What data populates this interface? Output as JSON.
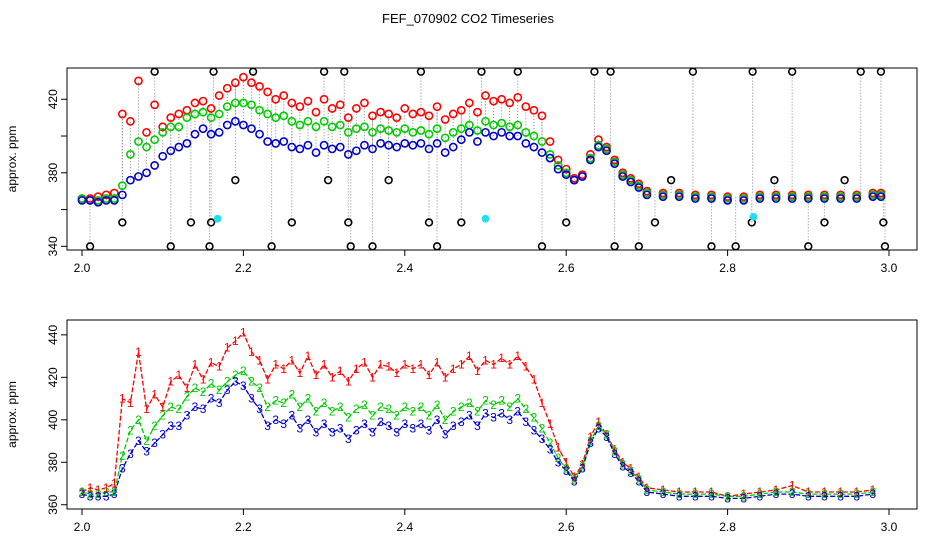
{
  "title": "FEF_070902  CO2 Timeseries",
  "colors": {
    "ch1": "#ff0000",
    "ch2": "#00cc00",
    "ch3": "#0000cc",
    "outlier": "#000000",
    "flag": "#22ddee",
    "link": "#888888",
    "frame": "#000000"
  },
  "chart_data": [
    {
      "type": "scatter",
      "panel": "top",
      "ylabel": "approx. ppm",
      "xlabel": "",
      "xlim": [
        2.0,
        3.0
      ],
      "ylim": [
        338,
        437
      ],
      "xticks": [
        2.0,
        2.2,
        2.4,
        2.6,
        2.8,
        3.0
      ],
      "xtick_labels": [
        "2.0",
        "2.2",
        "2.4",
        "2.6",
        "2.8",
        "3.0"
      ],
      "yticks": [
        340,
        380,
        420
      ],
      "ytick_labels": [
        "340",
        "380",
        "420"
      ],
      "yticks_unlabeled": [
        360,
        400
      ],
      "x": [
        2.0,
        2.01,
        2.02,
        2.03,
        2.04,
        2.05,
        2.06,
        2.07,
        2.08,
        2.09,
        2.1,
        2.11,
        2.12,
        2.13,
        2.14,
        2.15,
        2.16,
        2.17,
        2.18,
        2.19,
        2.2,
        2.21,
        2.22,
        2.23,
        2.24,
        2.25,
        2.26,
        2.27,
        2.28,
        2.29,
        2.3,
        2.31,
        2.32,
        2.33,
        2.34,
        2.35,
        2.36,
        2.37,
        2.38,
        2.39,
        2.4,
        2.41,
        2.42,
        2.43,
        2.44,
        2.45,
        2.46,
        2.47,
        2.48,
        2.49,
        2.5,
        2.51,
        2.52,
        2.53,
        2.54,
        2.55,
        2.56,
        2.57,
        2.58,
        2.59,
        2.6,
        2.61,
        2.62,
        2.63,
        2.64,
        2.65,
        2.66,
        2.67,
        2.68,
        2.69,
        2.7,
        2.72,
        2.74,
        2.76,
        2.78,
        2.8,
        2.82,
        2.84,
        2.86,
        2.88,
        2.9,
        2.92,
        2.94,
        2.96,
        2.98,
        2.99
      ],
      "series": [
        {
          "name": "1",
          "color": "#ff0000",
          "values": [
            366,
            366,
            367,
            368,
            369,
            412,
            408,
            430,
            402,
            417,
            405,
            410,
            412,
            414,
            418,
            419,
            415,
            422,
            426,
            429,
            432,
            429,
            427,
            424,
            420,
            422,
            418,
            416,
            419,
            413,
            420,
            415,
            417,
            410,
            415,
            418,
            411,
            413,
            412,
            410,
            415,
            412,
            413,
            411,
            416,
            409,
            412,
            414,
            418,
            413,
            422,
            419,
            420,
            418,
            421,
            416,
            414,
            411,
            397,
            387,
            382,
            377,
            379,
            390,
            398,
            394,
            387,
            380,
            377,
            374,
            370,
            369,
            369,
            368,
            368,
            367,
            367,
            368,
            368,
            368,
            368,
            368,
            368,
            368,
            369,
            369
          ]
        },
        {
          "name": "2",
          "color": "#00cc00",
          "values": [
            366,
            365,
            365,
            366,
            366,
            373,
            390,
            397,
            394,
            398,
            402,
            405,
            405,
            410,
            412,
            413,
            410,
            412,
            416,
            418,
            418,
            417,
            414,
            412,
            410,
            411,
            408,
            406,
            408,
            405,
            408,
            405,
            406,
            402,
            404,
            405,
            402,
            404,
            403,
            402,
            404,
            402,
            403,
            401,
            404,
            399,
            402,
            404,
            406,
            403,
            408,
            406,
            407,
            405,
            406,
            402,
            400,
            397,
            390,
            384,
            380,
            376,
            378,
            388,
            395,
            393,
            386,
            379,
            376,
            373,
            369,
            368,
            368,
            367,
            367,
            366,
            366,
            367,
            367,
            367,
            367,
            367,
            367,
            367,
            368,
            368
          ]
        },
        {
          "name": "3",
          "color": "#0000cc",
          "values": [
            365,
            365,
            364,
            365,
            365,
            368,
            376,
            378,
            380,
            384,
            389,
            392,
            394,
            396,
            401,
            404,
            401,
            402,
            406,
            408,
            406,
            404,
            401,
            397,
            396,
            397,
            394,
            393,
            395,
            391,
            395,
            393,
            394,
            390,
            392,
            395,
            393,
            396,
            395,
            394,
            396,
            395,
            396,
            393,
            396,
            391,
            394,
            398,
            402,
            397,
            402,
            400,
            402,
            400,
            400,
            396,
            394,
            391,
            388,
            382,
            379,
            376,
            378,
            387,
            394,
            392,
            385,
            378,
            375,
            372,
            368,
            367,
            367,
            366,
            366,
            365,
            365,
            366,
            366,
            366,
            366,
            366,
            366,
            366,
            367,
            367
          ]
        }
      ],
      "outliers": [
        {
          "x": 2.01,
          "y": 340
        },
        {
          "x": 2.05,
          "y": 353
        },
        {
          "x": 2.09,
          "y": 435
        },
        {
          "x": 2.11,
          "y": 340
        },
        {
          "x": 2.135,
          "y": 353
        },
        {
          "x": 2.158,
          "y": 340
        },
        {
          "x": 2.16,
          "y": 353
        },
        {
          "x": 2.163,
          "y": 435
        },
        {
          "x": 2.19,
          "y": 376
        },
        {
          "x": 2.212,
          "y": 435
        },
        {
          "x": 2.235,
          "y": 340
        },
        {
          "x": 2.26,
          "y": 353
        },
        {
          "x": 2.3,
          "y": 435
        },
        {
          "x": 2.305,
          "y": 376
        },
        {
          "x": 2.325,
          "y": 435
        },
        {
          "x": 2.33,
          "y": 353
        },
        {
          "x": 2.333,
          "y": 340
        },
        {
          "x": 2.36,
          "y": 340
        },
        {
          "x": 2.38,
          "y": 376
        },
        {
          "x": 2.42,
          "y": 435
        },
        {
          "x": 2.43,
          "y": 353
        },
        {
          "x": 2.44,
          "y": 340
        },
        {
          "x": 2.47,
          "y": 353
        },
        {
          "x": 2.495,
          "y": 435
        },
        {
          "x": 2.54,
          "y": 435
        },
        {
          "x": 2.57,
          "y": 340
        },
        {
          "x": 2.6,
          "y": 353
        },
        {
          "x": 2.635,
          "y": 435
        },
        {
          "x": 2.655,
          "y": 435
        },
        {
          "x": 2.66,
          "y": 340
        },
        {
          "x": 2.69,
          "y": 340
        },
        {
          "x": 2.71,
          "y": 353
        },
        {
          "x": 2.73,
          "y": 376
        },
        {
          "x": 2.757,
          "y": 435
        },
        {
          "x": 2.78,
          "y": 340
        },
        {
          "x": 2.81,
          "y": 340
        },
        {
          "x": 2.83,
          "y": 353
        },
        {
          "x": 2.831,
          "y": 435
        },
        {
          "x": 2.858,
          "y": 376
        },
        {
          "x": 2.88,
          "y": 435
        },
        {
          "x": 2.9,
          "y": 340
        },
        {
          "x": 2.92,
          "y": 353
        },
        {
          "x": 2.945,
          "y": 376
        },
        {
          "x": 2.965,
          "y": 435
        },
        {
          "x": 2.99,
          "y": 435
        },
        {
          "x": 2.993,
          "y": 353
        },
        {
          "x": 2.995,
          "y": 340
        }
      ],
      "flagged": [
        {
          "x": 2.168,
          "y": 355
        },
        {
          "x": 2.5,
          "y": 355
        },
        {
          "x": 2.832,
          "y": 356
        }
      ]
    },
    {
      "type": "line",
      "panel": "bottom",
      "ylabel": "approx. ppm",
      "xlabel": "",
      "xlim": [
        2.0,
        3.0
      ],
      "ylim": [
        358,
        447
      ],
      "xticks": [
        2.0,
        2.2,
        2.4,
        2.6,
        2.8,
        3.0
      ],
      "xtick_labels": [
        "2.0",
        "2.2",
        "2.4",
        "2.6",
        "2.8",
        "3.0"
      ],
      "yticks": [
        360,
        380,
        400,
        420,
        440
      ],
      "ytick_labels": [
        "360",
        "380",
        "400",
        "420",
        "440"
      ],
      "point_labels": [
        "1",
        "2",
        "3"
      ],
      "x": [
        2.0,
        2.01,
        2.02,
        2.03,
        2.04,
        2.05,
        2.06,
        2.07,
        2.08,
        2.09,
        2.1,
        2.11,
        2.12,
        2.13,
        2.14,
        2.15,
        2.16,
        2.17,
        2.18,
        2.19,
        2.2,
        2.21,
        2.22,
        2.23,
        2.24,
        2.25,
        2.26,
        2.27,
        2.28,
        2.29,
        2.3,
        2.31,
        2.32,
        2.33,
        2.34,
        2.35,
        2.36,
        2.37,
        2.38,
        2.39,
        2.4,
        2.41,
        2.42,
        2.43,
        2.44,
        2.45,
        2.46,
        2.47,
        2.48,
        2.49,
        2.5,
        2.51,
        2.52,
        2.53,
        2.54,
        2.55,
        2.56,
        2.57,
        2.58,
        2.59,
        2.6,
        2.61,
        2.62,
        2.63,
        2.64,
        2.65,
        2.66,
        2.67,
        2.68,
        2.69,
        2.7,
        2.72,
        2.74,
        2.76,
        2.78,
        2.8,
        2.82,
        2.84,
        2.86,
        2.88,
        2.9,
        2.92,
        2.94,
        2.96,
        2.98
      ],
      "series": [
        {
          "name": "1",
          "color": "#ff0000",
          "values": [
            366,
            368,
            367,
            368,
            370,
            410,
            408,
            432,
            405,
            412,
            406,
            418,
            421,
            415,
            426,
            419,
            427,
            425,
            434,
            437,
            441,
            432,
            428,
            419,
            426,
            424,
            428,
            422,
            430,
            421,
            426,
            420,
            423,
            418,
            424,
            427,
            420,
            426,
            425,
            422,
            426,
            424,
            426,
            421,
            427,
            420,
            424,
            426,
            430,
            423,
            428,
            426,
            429,
            426,
            430,
            425,
            419,
            408,
            398,
            387,
            380,
            373,
            379,
            392,
            399,
            393,
            386,
            380,
            377,
            373,
            368,
            367,
            366,
            366,
            366,
            364,
            365,
            366,
            367,
            369,
            366,
            366,
            366,
            366,
            367
          ]
        },
        {
          "name": "2",
          "color": "#00cc00",
          "values": [
            366,
            365,
            365,
            366,
            366,
            383,
            395,
            400,
            390,
            397,
            402,
            406,
            405,
            411,
            415,
            413,
            417,
            414,
            418,
            421,
            423,
            418,
            415,
            406,
            409,
            408,
            412,
            406,
            410,
            404,
            408,
            404,
            406,
            401,
            405,
            407,
            402,
            406,
            405,
            402,
            406,
            404,
            406,
            402,
            407,
            400,
            404,
            406,
            408,
            404,
            409,
            407,
            409,
            406,
            410,
            405,
            401,
            396,
            389,
            382,
            377,
            372,
            378,
            390,
            397,
            393,
            385,
            379,
            376,
            372,
            367,
            366,
            365,
            365,
            365,
            364,
            364,
            365,
            366,
            366,
            365,
            365,
            365,
            365,
            366
          ]
        },
        {
          "name": "3",
          "color": "#0000cc",
          "values": [
            365,
            364,
            364,
            364,
            365,
            377,
            384,
            390,
            385,
            389,
            393,
            397,
            397,
            402,
            406,
            405,
            410,
            408,
            414,
            418,
            416,
            410,
            405,
            397,
            400,
            398,
            402,
            396,
            400,
            394,
            398,
            394,
            396,
            391,
            395,
            398,
            394,
            399,
            397,
            394,
            398,
            396,
            398,
            395,
            400,
            393,
            397,
            399,
            402,
            397,
            403,
            401,
            403,
            400,
            404,
            399,
            395,
            391,
            386,
            380,
            376,
            371,
            377,
            389,
            396,
            392,
            384,
            378,
            375,
            371,
            366,
            365,
            364,
            364,
            364,
            363,
            363,
            364,
            365,
            365,
            364,
            364,
            364,
            364,
            365
          ]
        }
      ]
    }
  ]
}
